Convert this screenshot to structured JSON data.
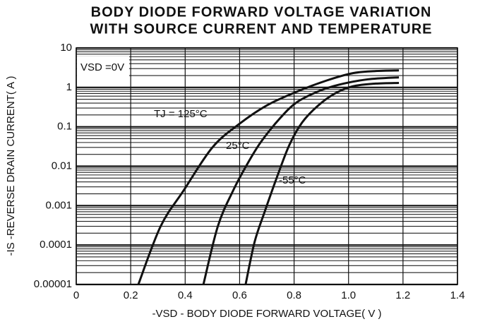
{
  "chart_data": {
    "type": "line",
    "title": [
      "BODY DIODE FORWARD VOLTAGE VARIATION",
      "WITH SOURCE CURRENT AND TEMPERATURE"
    ],
    "x_label": "-VSD - BODY DIODE FORWARD VOLTAGE( V )",
    "y_label": "-IS -REVERSE DRAIN CURRENT( A )",
    "annotation": "VSD =0V",
    "log_y": true,
    "grid": true,
    "minor_grid": true,
    "xlim": [
      0,
      1.4
    ],
    "ylim": [
      1e-05,
      10
    ],
    "xticks": [
      0,
      0.2,
      0.4,
      0.6,
      0.8,
      {
        "value": 1,
        "label": "1.0"
      },
      1.2,
      1.4
    ],
    "yticks": [
      10,
      1,
      0.1,
      0.01,
      0.001,
      0.0001,
      1e-05
    ],
    "series": [
      {
        "name": "TJ = 125°C",
        "color": "#111111",
        "x": [
          0.228,
          0.31,
          0.394,
          0.5,
          0.6,
          0.7,
          0.81,
          0.92,
          1.016,
          1.1,
          1.185
        ],
        "values": [
          1e-05,
          0.0003,
          0.0024,
          0.03,
          0.12,
          0.35,
          0.78,
          1.5,
          2.3,
          2.6,
          2.7
        ]
      },
      {
        "name": "25°C",
        "color": "#111111",
        "x": [
          0.467,
          0.52,
          0.576,
          0.63,
          0.68,
          0.75,
          0.81,
          0.89,
          0.964,
          1.07,
          1.185
        ],
        "values": [
          1e-05,
          0.0003,
          0.0024,
          0.012,
          0.043,
          0.17,
          0.42,
          0.8,
          1.17,
          1.6,
          1.8
        ]
      },
      {
        "name": "-55°C",
        "color": "#111111",
        "x": [
          0.622,
          0.655,
          0.692,
          0.74,
          0.783,
          0.83,
          0.887,
          0.95,
          1.016,
          1.1,
          1.185
        ],
        "values": [
          1e-05,
          0.00012,
          0.0007,
          0.006,
          0.035,
          0.13,
          0.34,
          0.7,
          1.07,
          1.25,
          1.3
        ]
      }
    ]
  }
}
